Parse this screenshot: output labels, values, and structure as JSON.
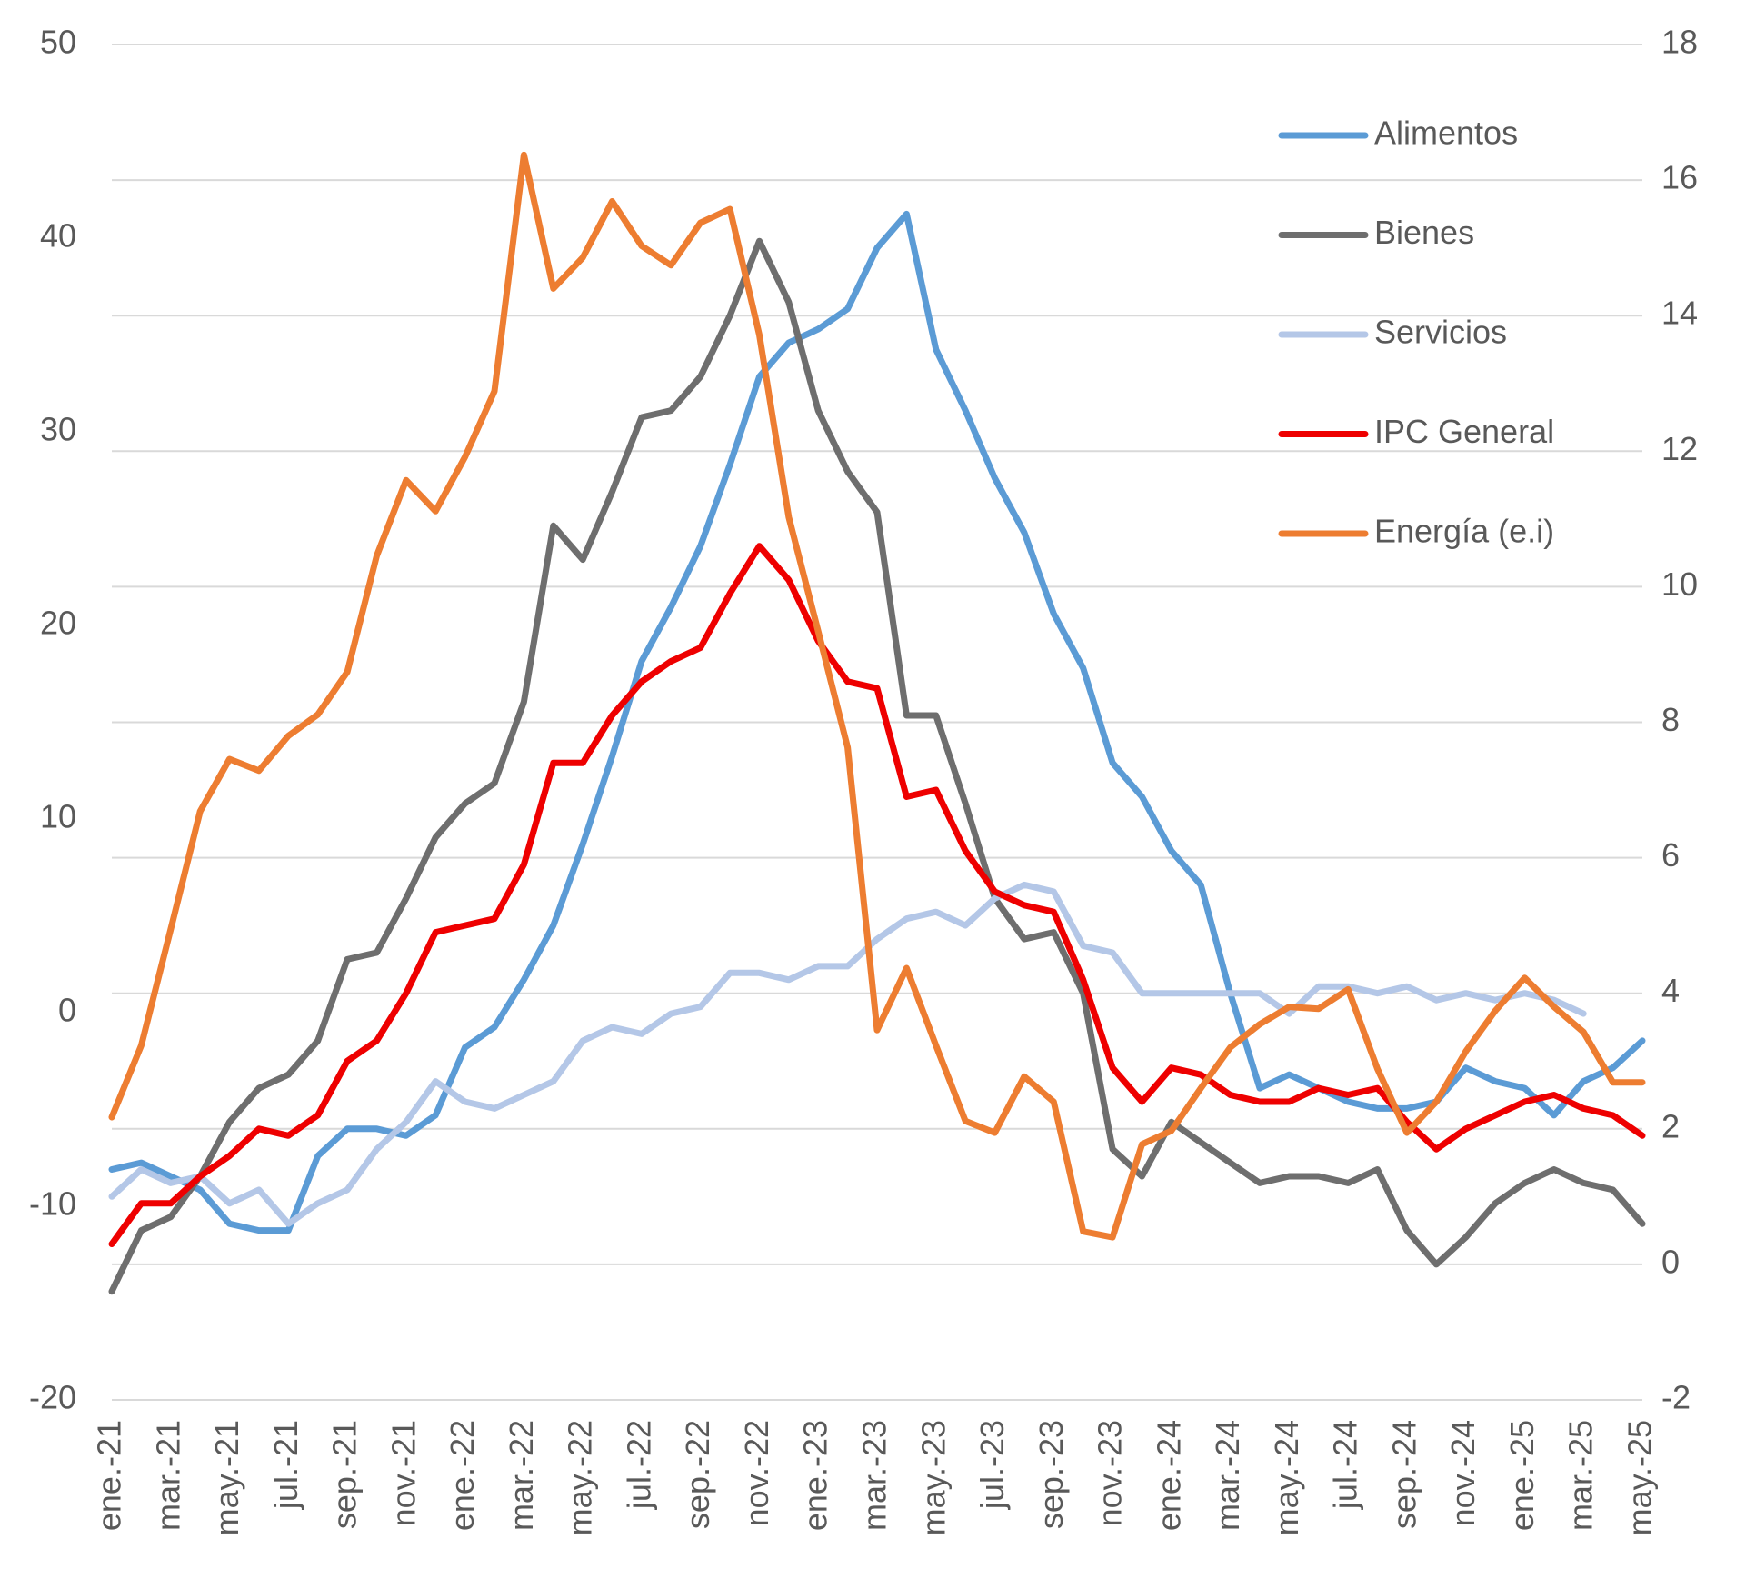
{
  "chart_data": {
    "type": "line",
    "categories": [
      "ene.-21",
      null,
      "mar.-21",
      null,
      "may.-21",
      null,
      "jul.-21",
      null,
      "sep.-21",
      null,
      "nov.-21",
      null,
      "ene.-22",
      null,
      "mar.-22",
      null,
      "may.-22",
      null,
      "jul.-22",
      null,
      "sep.-22",
      null,
      "nov.-22",
      null,
      "ene.-23",
      null,
      "mar.-23",
      null,
      "may.-23",
      null,
      "jul.-23",
      null,
      "sep.-23",
      null,
      "nov.-23",
      null,
      "ene.-24",
      null,
      "mar.-24",
      null,
      "may.-24",
      null,
      "jul.-24",
      null,
      "sep.-24",
      null,
      "nov.-24",
      null,
      "ene.-25",
      null,
      "mar.-25",
      null,
      "may.-25"
    ],
    "series": [
      {
        "name": "Alimentos",
        "color": "#5b9bd5",
        "axis": "y2",
        "values": [
          1.4,
          1.5,
          1.3,
          1.1,
          0.6,
          0.5,
          0.5,
          1.6,
          2.0,
          2.0,
          1.9,
          2.2,
          3.2,
          3.5,
          4.2,
          5.0,
          6.2,
          7.5,
          8.9,
          9.7,
          10.6,
          11.8,
          13.1,
          13.6,
          13.8,
          14.1,
          15.0,
          15.5,
          13.5,
          12.6,
          11.6,
          10.8,
          9.6,
          8.8,
          7.4,
          6.9,
          6.1,
          5.6,
          4.0,
          2.6,
          2.8,
          2.6,
          2.4,
          2.3,
          2.3,
          2.4,
          2.9,
          2.7,
          2.6,
          2.2,
          2.7,
          2.9,
          3.3
        ]
      },
      {
        "name": "Bienes",
        "color": "#6e6e6e",
        "axis": "y2",
        "values": [
          -0.4,
          0.5,
          0.7,
          1.3,
          2.1,
          2.6,
          2.8,
          3.3,
          4.5,
          4.6,
          5.4,
          6.3,
          6.8,
          7.1,
          8.3,
          10.9,
          10.4,
          11.4,
          12.5,
          12.6,
          13.1,
          14.0,
          15.1,
          14.2,
          12.6,
          11.7,
          11.1,
          8.1,
          8.1,
          6.8,
          5.4,
          4.8,
          4.9,
          4.0,
          1.7,
          1.3,
          2.1,
          1.8,
          1.5,
          1.2,
          1.3,
          1.3,
          1.2,
          1.4,
          0.5,
          0.0,
          0.4,
          0.9,
          1.2,
          1.4,
          1.2,
          1.1,
          0.6
        ]
      },
      {
        "name": "Servicios",
        "color": "#b4c7e7",
        "axis": "y2",
        "values": [
          1.0,
          1.4,
          1.2,
          1.3,
          0.9,
          1.1,
          0.6,
          0.9,
          1.1,
          1.7,
          2.1,
          2.7,
          2.4,
          2.3,
          2.5,
          2.7,
          3.3,
          3.5,
          3.4,
          3.7,
          3.8,
          4.3,
          4.3,
          4.2,
          4.4,
          4.4,
          4.8,
          5.1,
          5.2,
          5.0,
          5.4,
          5.6,
          5.5,
          4.7,
          4.6,
          4.0,
          4.0,
          4.0,
          4.0,
          4.0,
          3.7,
          4.1,
          4.1,
          4.0,
          4.1,
          3.9,
          4.0,
          3.9,
          4.0,
          3.9,
          3.7,
          null,
          null
        ]
      },
      {
        "name": "IPC General",
        "color": "#ee0000",
        "axis": "y2",
        "values": [
          0.3,
          0.9,
          0.9,
          1.3,
          1.6,
          2.0,
          1.9,
          2.2,
          3.0,
          3.3,
          4.0,
          4.9,
          5.0,
          5.1,
          5.9,
          7.4,
          7.4,
          8.1,
          8.6,
          8.9,
          9.1,
          9.9,
          10.6,
          10.1,
          9.2,
          8.6,
          8.5,
          6.9,
          7.0,
          6.1,
          5.5,
          5.3,
          5.2,
          4.2,
          2.9,
          2.4,
          2.9,
          2.8,
          2.5,
          2.4,
          2.4,
          2.6,
          2.5,
          2.6,
          2.1,
          1.7,
          2.0,
          2.2,
          2.4,
          2.5,
          2.3,
          2.2,
          1.9
        ]
      },
      {
        "name": "Energía (e.i)",
        "color": "#ed7d31",
        "axis": "y",
        "values": [
          -5.4,
          -1.7,
          4.3,
          10.4,
          13.1,
          12.5,
          14.3,
          15.4,
          17.6,
          23.6,
          27.5,
          25.9,
          28.7,
          32.1,
          44.3,
          37.4,
          39.0,
          41.9,
          39.6,
          38.6,
          40.8,
          41.5,
          35.0,
          25.6,
          19.7,
          13.7,
          -0.9,
          2.3,
          -1.7,
          -5.6,
          -6.2,
          -3.3,
          -4.6,
          -11.3,
          -11.6,
          -6.8,
          -6.1,
          -3.9,
          -1.8,
          -0.6,
          0.3,
          0.2,
          1.2,
          -2.9,
          -6.2,
          -4.6,
          -2.0,
          0.1,
          1.8,
          0.3,
          -1.0,
          -3.6,
          -3.6
        ]
      }
    ],
    "ylim": [
      -20,
      50
    ],
    "yticks": [
      -20,
      -10,
      0,
      10,
      20,
      30,
      40,
      50
    ],
    "y2lim": [
      -2,
      18
    ],
    "y2ticks": [
      -2,
      0,
      2,
      4,
      6,
      8,
      10,
      12,
      14,
      16,
      18
    ],
    "grid": "y2",
    "legend": "upper right"
  }
}
